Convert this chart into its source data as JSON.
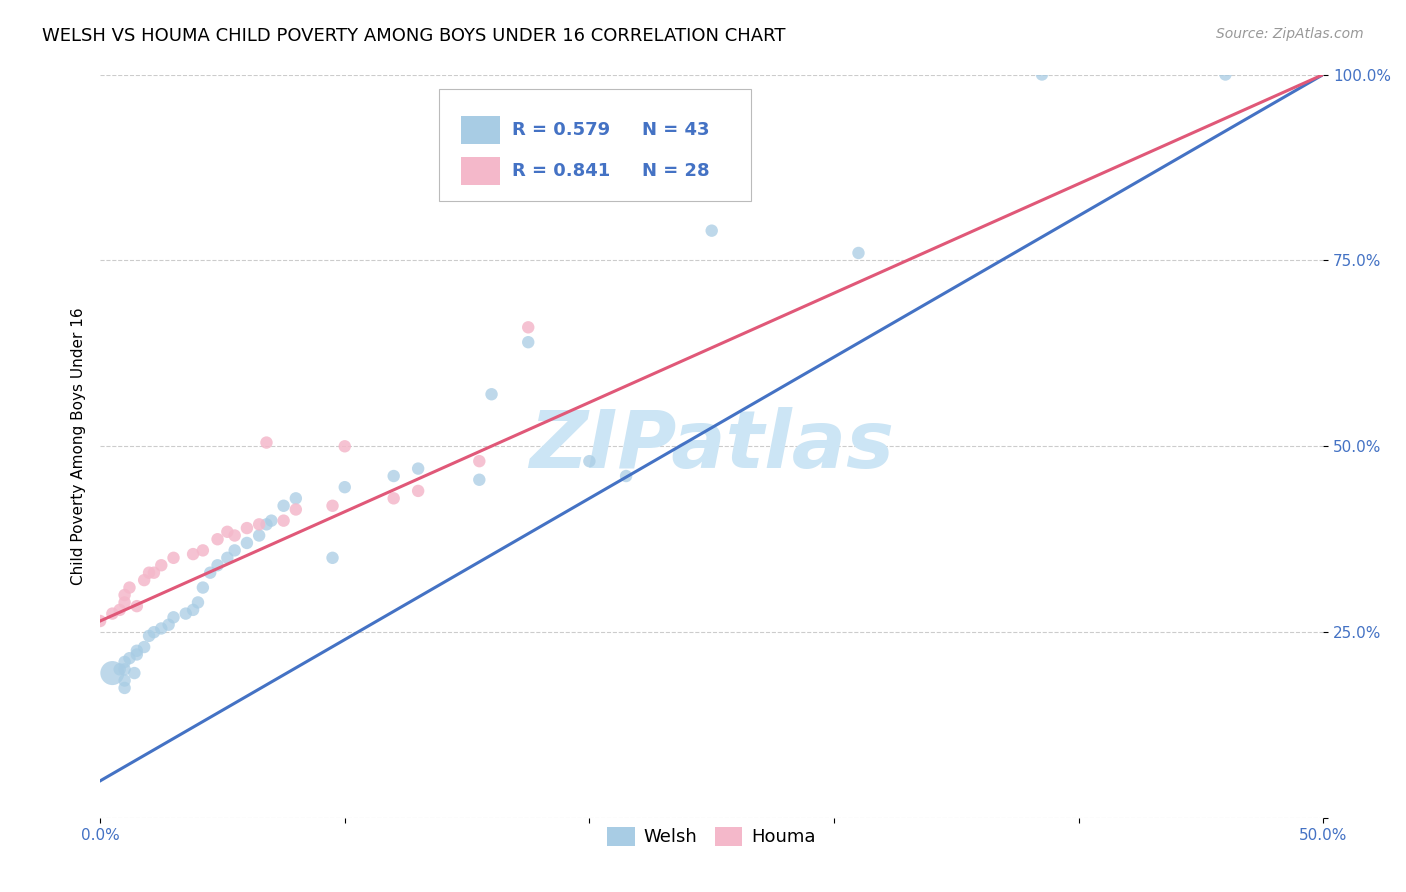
{
  "title": "WELSH VS HOUMA CHILD POVERTY AMONG BOYS UNDER 16 CORRELATION CHART",
  "source": "Source: ZipAtlas.com",
  "ylabel": "Child Poverty Among Boys Under 16",
  "xlim": [
    0.0,
    0.5
  ],
  "ylim": [
    0.0,
    1.0
  ],
  "xticks": [
    0.0,
    0.1,
    0.2,
    0.3,
    0.4,
    0.5
  ],
  "yticks": [
    0.0,
    0.25,
    0.5,
    0.75,
    1.0
  ],
  "xtick_labels": [
    "0.0%",
    "",
    "",
    "",
    "",
    "50.0%"
  ],
  "ytick_labels": [
    "",
    "25.0%",
    "50.0%",
    "75.0%",
    "100.0%"
  ],
  "welsh_color": "#a8cce4",
  "houma_color": "#f4b8ca",
  "welsh_line_color": "#4472c4",
  "houma_line_color": "#e05878",
  "welsh_R": 0.579,
  "welsh_N": 43,
  "houma_R": 0.841,
  "houma_N": 28,
  "welsh_x": [
    0.005,
    0.008,
    0.01,
    0.01,
    0.01,
    0.01,
    0.012,
    0.014,
    0.015,
    0.015,
    0.018,
    0.02,
    0.022,
    0.025,
    0.028,
    0.03,
    0.035,
    0.038,
    0.04,
    0.042,
    0.045,
    0.048,
    0.052,
    0.055,
    0.06,
    0.065,
    0.068,
    0.07,
    0.075,
    0.08,
    0.095,
    0.1,
    0.12,
    0.13,
    0.155,
    0.16,
    0.175,
    0.2,
    0.215,
    0.25,
    0.31,
    0.385,
    0.46
  ],
  "welsh_y": [
    0.195,
    0.2,
    0.175,
    0.185,
    0.2,
    0.21,
    0.215,
    0.195,
    0.22,
    0.225,
    0.23,
    0.245,
    0.25,
    0.255,
    0.26,
    0.27,
    0.275,
    0.28,
    0.29,
    0.31,
    0.33,
    0.34,
    0.35,
    0.36,
    0.37,
    0.38,
    0.395,
    0.4,
    0.42,
    0.43,
    0.35,
    0.445,
    0.46,
    0.47,
    0.455,
    0.57,
    0.64,
    0.48,
    0.46,
    0.79,
    0.76,
    1.0,
    1.0
  ],
  "welsh_sizes": [
    300,
    80,
    80,
    80,
    80,
    80,
    80,
    80,
    80,
    80,
    80,
    80,
    80,
    80,
    80,
    80,
    80,
    80,
    80,
    80,
    80,
    80,
    80,
    80,
    80,
    80,
    80,
    80,
    80,
    80,
    80,
    80,
    80,
    80,
    80,
    80,
    80,
    80,
    80,
    80,
    80,
    80,
    80
  ],
  "houma_x": [
    0.0,
    0.005,
    0.008,
    0.01,
    0.01,
    0.012,
    0.015,
    0.018,
    0.02,
    0.022,
    0.025,
    0.03,
    0.038,
    0.042,
    0.048,
    0.052,
    0.055,
    0.06,
    0.065,
    0.068,
    0.075,
    0.08,
    0.095,
    0.1,
    0.12,
    0.13,
    0.155,
    0.175
  ],
  "houma_y": [
    0.265,
    0.275,
    0.28,
    0.29,
    0.3,
    0.31,
    0.285,
    0.32,
    0.33,
    0.33,
    0.34,
    0.35,
    0.355,
    0.36,
    0.375,
    0.385,
    0.38,
    0.39,
    0.395,
    0.505,
    0.4,
    0.415,
    0.42,
    0.5,
    0.43,
    0.44,
    0.48,
    0.66
  ],
  "houma_sizes": [
    80,
    80,
    80,
    80,
    80,
    80,
    80,
    80,
    80,
    80,
    80,
    80,
    80,
    80,
    80,
    80,
    80,
    80,
    80,
    80,
    80,
    80,
    80,
    80,
    80,
    80,
    80,
    80
  ],
  "background_color": "#ffffff",
  "watermark_text": "ZIPatlas",
  "watermark_color": "#cce5f5",
  "grid_color": "#cccccc",
  "title_fontsize": 13,
  "axis_label_fontsize": 11,
  "tick_fontsize": 11,
  "source_fontsize": 10,
  "welsh_line_x0": 0.0,
  "welsh_line_y0": 0.05,
  "welsh_line_x1": 0.5,
  "welsh_line_y1": 1.0,
  "houma_line_x0": 0.0,
  "houma_line_y0": 0.265,
  "houma_line_x1": 0.5,
  "houma_line_y1": 1.0
}
